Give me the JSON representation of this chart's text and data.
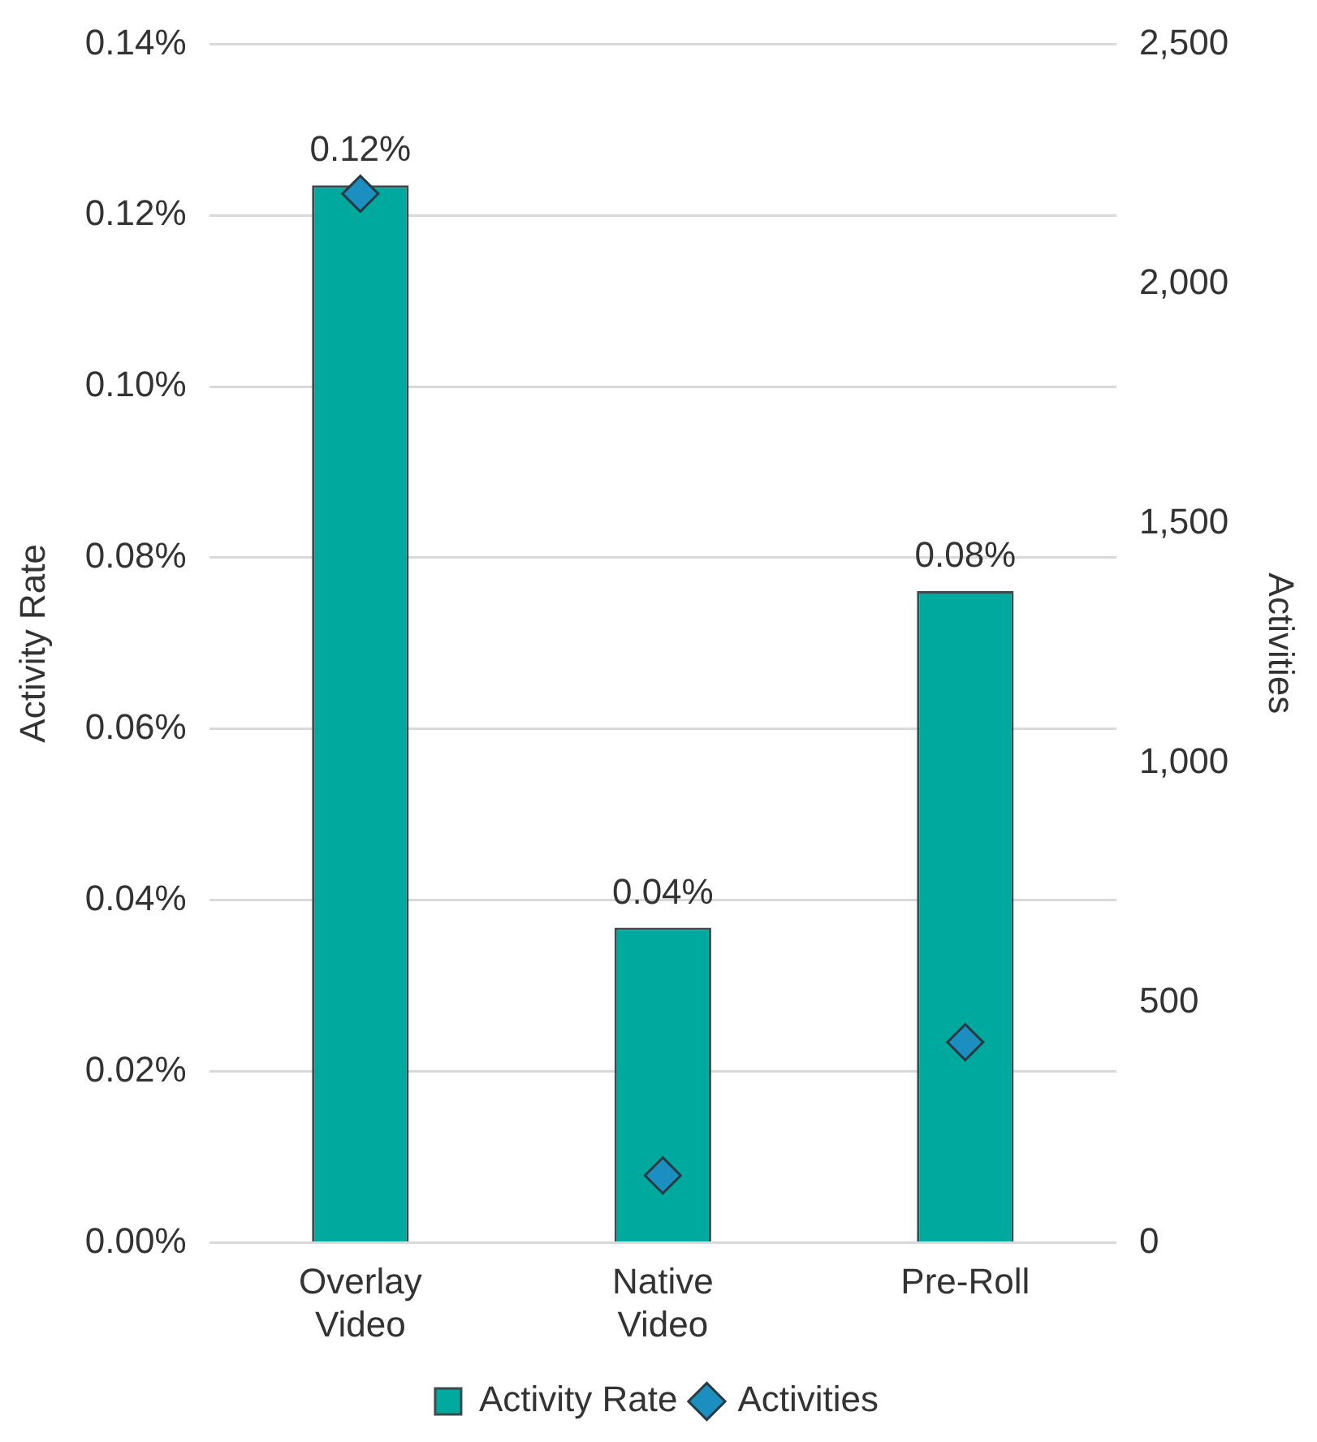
{
  "chart_data": {
    "type": "bar",
    "ylabel": "Activity Rate",
    "y2label": "Activities",
    "categories": [
      "Overlay Video",
      "Native Video",
      "Pre-Roll"
    ],
    "series": [
      {
        "name": "Activity Rate",
        "color": "#00a99d",
        "values": [
          0.1235,
          0.0368,
          0.0761
        ],
        "value_labels": [
          "0.12%",
          "0.04%",
          "0.08%"
        ]
      },
      {
        "name": "Activities",
        "type": "scatter",
        "axis": "y2",
        "marker": "diamond",
        "color": "#1a8fc0",
        "x": [
          "Overlay Video",
          "Native Video",
          "Pre-Roll"
        ],
        "values": [
          2188,
          140,
          418
        ]
      }
    ],
    "ylim": [
      0,
      0.14
    ],
    "yticks": [
      {
        "value": 0,
        "label": "0.00%"
      },
      {
        "value": 0.02,
        "label": "0.02%"
      },
      {
        "value": 0.04,
        "label": "0.04%"
      },
      {
        "value": 0.06,
        "label": "0.06%"
      },
      {
        "value": 0.08,
        "label": "0.08%"
      },
      {
        "value": 0.1,
        "label": "0.10%"
      },
      {
        "value": 0.12,
        "label": "0.12%"
      },
      {
        "value": 0.14,
        "label": "0.14%"
      }
    ],
    "y2lim": [
      0,
      2500
    ],
    "y2ticks": [
      0,
      500,
      {
        "value": 1000,
        "label": "1,000"
      },
      {
        "value": 1500,
        "label": "1,500"
      },
      {
        "value": 2000,
        "label": "2,000"
      },
      {
        "value": 2500,
        "label": "2,500"
      }
    ],
    "grid": "y",
    "legend": "bottom"
  }
}
